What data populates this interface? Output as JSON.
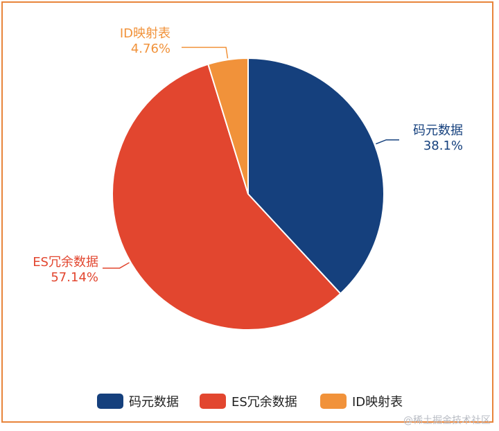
{
  "chart_data": {
    "type": "pie",
    "title": "",
    "slices": [
      {
        "name": "码元数据",
        "value": 38.1,
        "label": "38.1%",
        "color": "#15407d"
      },
      {
        "name": "ES冗余数据",
        "value": 57.14,
        "label": "57.14%",
        "color": "#e2462f"
      },
      {
        "name": "ID映射表",
        "value": 4.76,
        "label": "4.76%",
        "color": "#f1923a"
      }
    ],
    "legend": {
      "position": "bottom",
      "items": [
        "码元数据",
        "ES冗余数据",
        "ID映射表"
      ]
    }
  },
  "frame_color": "#e8843a",
  "watermark": "@稀土掘金技术社区"
}
